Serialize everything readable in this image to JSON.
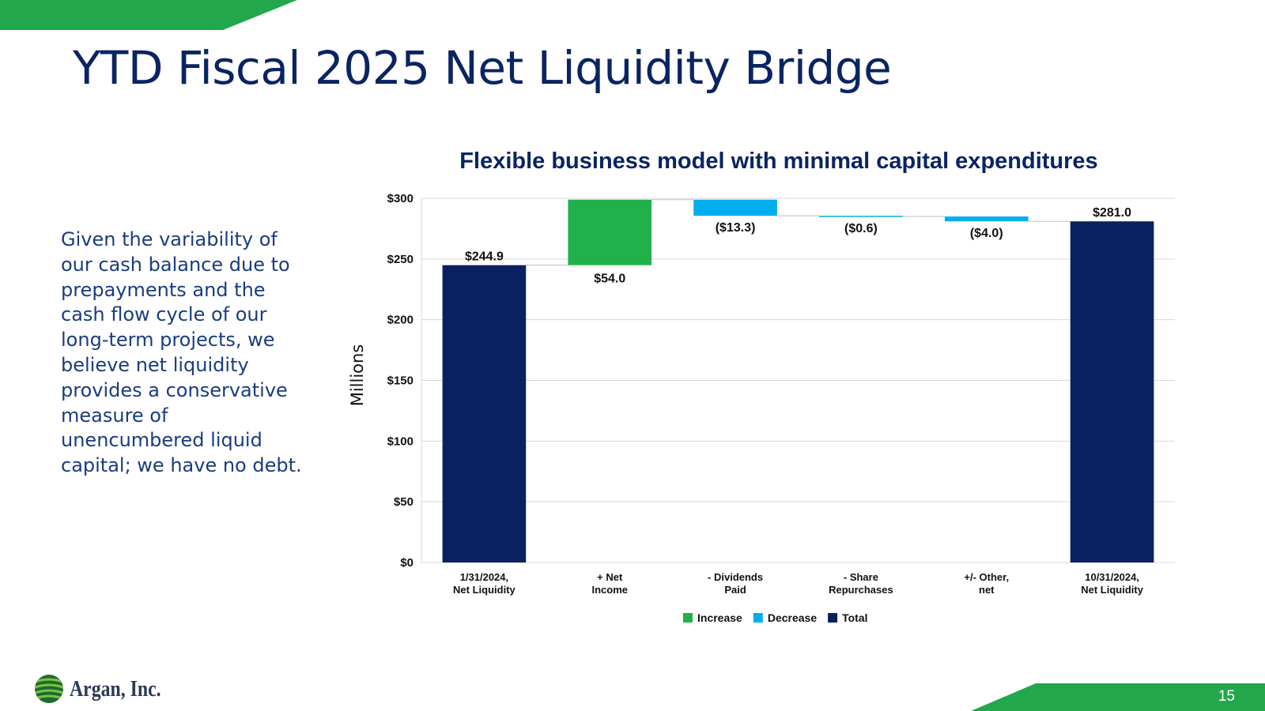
{
  "slide": {
    "title": "YTD Fiscal 2025 Net Liquidity Bridge",
    "body_text": "Given the variability of our cash balance due to prepayments and the cash flow cycle of our long-term projects, we believe net liquidity provides a conservative measure of unencumbered liquid capital; we have no debt.",
    "page_number": "15",
    "logo_text": "Argan, Inc.",
    "colors": {
      "title": "#0a2463",
      "body_text": "#1a3c80",
      "banner_green": "#22a84a"
    }
  },
  "chart_data": {
    "type": "bar",
    "variant": "waterfall",
    "title": "Flexible business model with minimal capital expenditures",
    "ylabel": "Millions",
    "ylim": [
      0,
      300
    ],
    "yticks": [
      0,
      50,
      100,
      150,
      200,
      250,
      300
    ],
    "ytick_labels": [
      "$0",
      "$50",
      "$100",
      "$150",
      "$200",
      "$250",
      "$300"
    ],
    "grid": true,
    "legend_position": "bottom",
    "categories": [
      [
        "1/31/2024,",
        "Net Liquidity"
      ],
      [
        "+ Net",
        "Income"
      ],
      [
        "- Dividends",
        "Paid"
      ],
      [
        "- Share",
        "Repurchases"
      ],
      [
        "+/- Other,",
        "net"
      ],
      [
        "10/31/2024,",
        "Net Liquidity"
      ]
    ],
    "bars": [
      {
        "kind": "total",
        "start": 0,
        "end": 244.9,
        "label": "$244.9"
      },
      {
        "kind": "increase",
        "start": 244.9,
        "end": 298.9,
        "label": "$54.0"
      },
      {
        "kind": "decrease",
        "start": 298.9,
        "end": 285.6,
        "label": "($13.3)"
      },
      {
        "kind": "decrease",
        "start": 285.6,
        "end": 285.0,
        "label": "($0.6)"
      },
      {
        "kind": "decrease",
        "start": 285.0,
        "end": 281.0,
        "label": "($4.0)"
      },
      {
        "kind": "total",
        "start": 0,
        "end": 281.0,
        "label": "$281.0"
      }
    ],
    "legend": [
      {
        "kind": "increase",
        "name": "Increase"
      },
      {
        "kind": "decrease",
        "name": "Decrease"
      },
      {
        "kind": "total",
        "name": "Total"
      }
    ],
    "colors": {
      "increase": "#22b04b",
      "decrease": "#00aeef",
      "total": "#0a2060",
      "grid": "#d9d9d9"
    }
  }
}
